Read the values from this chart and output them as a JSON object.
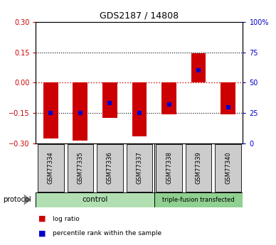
{
  "title": "GDS2187 / 14808",
  "samples": [
    "GSM77334",
    "GSM77335",
    "GSM77336",
    "GSM77337",
    "GSM77338",
    "GSM77339",
    "GSM77340"
  ],
  "log_ratio_top": [
    0.0,
    0.0,
    0.0,
    0.0,
    0.0,
    0.145,
    0.0
  ],
  "log_ratio_bottom": [
    -0.275,
    -0.285,
    -0.175,
    -0.265,
    -0.155,
    0.0,
    -0.155
  ],
  "percentile_rank": [
    25,
    25,
    33,
    25,
    32,
    60,
    30
  ],
  "ylim_left": [
    -0.3,
    0.3
  ],
  "ylim_right": [
    0,
    100
  ],
  "yticks_left": [
    -0.3,
    -0.15,
    0,
    0.15,
    0.3
  ],
  "yticks_right": [
    0,
    25,
    50,
    75,
    100
  ],
  "bar_color": "#cc0000",
  "dot_color": "#0000cc",
  "hline_color_zero": "#cc0000",
  "hline_color_grid": "#000000",
  "control_label": "control",
  "transfected_label": "triple-fusion transfected",
  "protocol_label": "protocol",
  "legend_log_ratio": "log ratio",
  "legend_percentile": "percentile rank within the sample",
  "control_color": "#b2dfb2",
  "transfected_color": "#90d090",
  "sample_box_color": "#cccccc",
  "bar_width": 0.5,
  "n_control": 4,
  "n_transfected": 3
}
